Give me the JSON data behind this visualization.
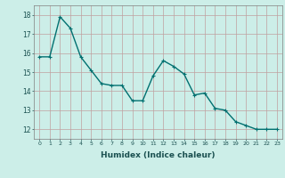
{
  "x": [
    0,
    1,
    2,
    3,
    4,
    5,
    6,
    7,
    8,
    9,
    10,
    11,
    12,
    13,
    14,
    15,
    16,
    17,
    18,
    19,
    20,
    21,
    22,
    23
  ],
  "y": [
    15.8,
    15.8,
    17.9,
    17.3,
    15.8,
    15.1,
    14.4,
    14.3,
    14.3,
    13.5,
    13.5,
    14.8,
    15.6,
    15.3,
    14.9,
    13.8,
    13.9,
    13.1,
    13.0,
    12.4,
    12.2,
    12.0,
    12.0,
    12.0
  ],
  "line_color": "#007070",
  "marker": "+",
  "marker_size": 3,
  "xlabel": "Humidex (Indice chaleur)",
  "xlim": [
    -0.5,
    23.5
  ],
  "ylim": [
    11.5,
    18.5
  ],
  "yticks": [
    12,
    13,
    14,
    15,
    16,
    17,
    18
  ],
  "xticks": [
    0,
    1,
    2,
    3,
    4,
    5,
    6,
    7,
    8,
    9,
    10,
    11,
    12,
    13,
    14,
    15,
    16,
    17,
    18,
    19,
    20,
    21,
    22,
    23
  ],
  "bg_color": "#cceee8",
  "grid_color": "#c0a0a0",
  "line_width": 1.0
}
